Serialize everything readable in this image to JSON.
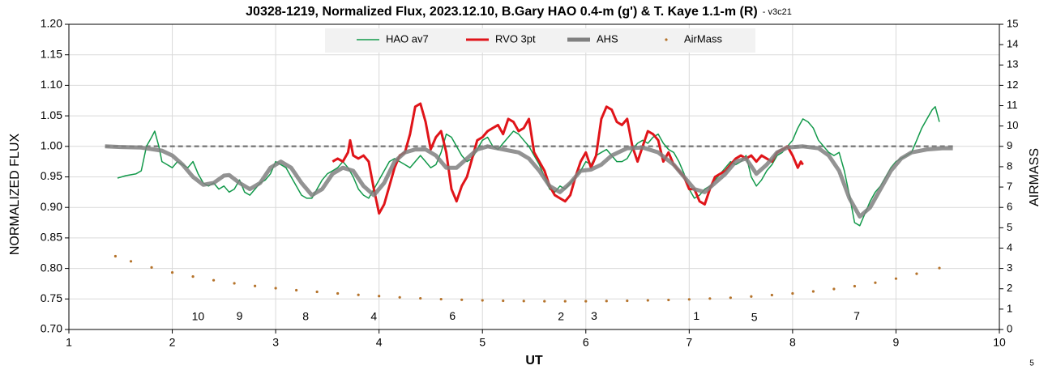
{
  "chart_data": {
    "type": "line",
    "title": "J0328-1219, Normalized Flux, 2023.12.10, B.Gary HAO 0.4-m (g') & T. Kaye 1.1-m (R)",
    "subtitle": "- v3c21",
    "x_label": "UT",
    "y_label": "NORMALIZED FLUX",
    "y2_label": "AIRMASS",
    "corner_note": "5",
    "xlim": [
      1,
      10
    ],
    "xticks": [
      1,
      2,
      3,
      4,
      5,
      6,
      7,
      8,
      9,
      10
    ],
    "ylim": [
      0.7,
      1.2
    ],
    "yticks": [
      {
        "value": 0.7,
        "label": "0.70"
      },
      {
        "value": 0.75,
        "label": "0.75"
      },
      {
        "value": 0.8,
        "label": "0.80"
      },
      {
        "value": 0.85,
        "label": "0.85"
      },
      {
        "value": 0.9,
        "label": "0.90"
      },
      {
        "value": 0.95,
        "label": "0.95"
      },
      {
        "value": 1.0,
        "label": "1.00"
      },
      {
        "value": 1.05,
        "label": "1.05"
      },
      {
        "value": 1.1,
        "label": "1.10"
      },
      {
        "value": 1.15,
        "label": "1.15"
      },
      {
        "value": 1.2,
        "label": "1.20"
      }
    ],
    "y2lim": [
      0,
      15
    ],
    "y2ticks": [
      0,
      1,
      2,
      3,
      4,
      5,
      6,
      7,
      8,
      9,
      10,
      11,
      12,
      13,
      14,
      15
    ],
    "grid": true,
    "legend": "top",
    "reference_line": {
      "y": 1.0,
      "x": [
        1.35,
        9.55
      ],
      "color": "#808080"
    },
    "series": [
      {
        "name": "HAO av7",
        "color": "#12994a",
        "width": 1.5,
        "x": [
          1.47,
          1.55,
          1.65,
          1.7,
          1.75,
          1.8,
          1.83,
          1.87,
          1.9,
          1.95,
          2.0,
          2.05,
          2.1,
          2.15,
          2.2,
          2.25,
          2.3,
          2.35,
          2.4,
          2.45,
          2.5,
          2.55,
          2.6,
          2.65,
          2.7,
          2.75,
          2.8,
          2.85,
          2.9,
          2.95,
          3.0,
          3.05,
          3.1,
          3.15,
          3.2,
          3.25,
          3.3,
          3.35,
          3.4,
          3.45,
          3.5,
          3.55,
          3.6,
          3.65,
          3.7,
          3.75,
          3.8,
          3.85,
          3.9,
          3.95,
          4.0,
          4.05,
          4.1,
          4.15,
          4.2,
          4.25,
          4.3,
          4.35,
          4.4,
          4.45,
          4.5,
          4.55,
          4.6,
          4.65,
          4.7,
          4.75,
          4.8,
          4.85,
          4.9,
          4.95,
          5.0,
          5.05,
          5.1,
          5.15,
          5.2,
          5.25,
          5.3,
          5.35,
          5.4,
          5.45,
          5.5,
          5.55,
          5.6,
          5.65,
          5.7,
          5.75,
          5.8,
          5.85,
          5.9,
          5.95,
          6.0,
          6.05,
          6.1,
          6.15,
          6.2,
          6.25,
          6.3,
          6.35,
          6.4,
          6.45,
          6.5,
          6.55,
          6.6,
          6.65,
          6.7,
          6.75,
          6.8,
          6.85,
          6.9,
          6.95,
          7.0,
          7.05,
          7.1,
          7.15,
          7.2,
          7.25,
          7.3,
          7.35,
          7.4,
          7.45,
          7.5,
          7.55,
          7.6,
          7.65,
          7.7,
          7.75,
          7.8,
          7.85,
          7.9,
          7.95,
          8.0,
          8.05,
          8.1,
          8.15,
          8.2,
          8.25,
          8.3,
          8.35,
          8.4,
          8.45,
          8.5,
          8.55,
          8.6,
          8.65,
          8.7,
          8.75,
          8.8,
          8.85,
          8.9,
          8.95,
          9.0,
          9.05,
          9.1,
          9.15,
          9.2,
          9.25,
          9.3,
          9.35,
          9.38,
          9.42
        ],
        "values": [
          0.948,
          0.952,
          0.955,
          0.96,
          1.0,
          1.015,
          1.025,
          1.0,
          0.975,
          0.97,
          0.965,
          0.975,
          0.97,
          0.965,
          0.975,
          0.955,
          0.94,
          0.935,
          0.94,
          0.93,
          0.935,
          0.925,
          0.93,
          0.945,
          0.925,
          0.92,
          0.93,
          0.94,
          0.945,
          0.955,
          0.975,
          0.97,
          0.965,
          0.95,
          0.935,
          0.92,
          0.915,
          0.915,
          0.93,
          0.945,
          0.955,
          0.96,
          0.965,
          0.975,
          0.965,
          0.95,
          0.93,
          0.92,
          0.915,
          0.93,
          0.945,
          0.96,
          0.975,
          0.98,
          0.975,
          0.97,
          0.965,
          0.975,
          0.985,
          0.975,
          0.965,
          0.97,
          0.99,
          1.02,
          1.015,
          1.0,
          0.985,
          0.975,
          0.98,
          0.995,
          1.01,
          1.015,
          1.0,
          0.995,
          1.005,
          1.015,
          1.025,
          1.02,
          1.01,
          1.0,
          0.985,
          0.97,
          0.95,
          0.93,
          0.925,
          0.935,
          0.93,
          0.94,
          0.95,
          0.96,
          0.975,
          0.97,
          0.985,
          0.99,
          0.995,
          0.985,
          0.975,
          0.975,
          0.98,
          0.995,
          1.005,
          1.01,
          1.005,
          1.015,
          1.02,
          1.005,
          0.995,
          0.99,
          0.975,
          0.955,
          0.93,
          0.915,
          0.92,
          0.93,
          0.935,
          0.945,
          0.955,
          0.965,
          0.975,
          0.97,
          0.975,
          0.985,
          0.95,
          0.935,
          0.945,
          0.96,
          0.97,
          0.985,
          0.99,
          1.0,
          1.01,
          1.03,
          1.045,
          1.04,
          1.03,
          1.01,
          1.0,
          0.99,
          0.985,
          0.99,
          0.96,
          0.92,
          0.875,
          0.87,
          0.89,
          0.91,
          0.925,
          0.935,
          0.95,
          0.965,
          0.975,
          0.98,
          0.985,
          0.99,
          1.01,
          1.03,
          1.045,
          1.06,
          1.065,
          1.04
        ]
      },
      {
        "name": "RVO 3pt",
        "color": "#e01419",
        "width": 3,
        "x": [
          3.55,
          3.6,
          3.65,
          3.7,
          3.72,
          3.75,
          3.8,
          3.85,
          3.9,
          3.95,
          4.0,
          4.05,
          4.1,
          4.15,
          4.2,
          4.25,
          4.3,
          4.35,
          4.4,
          4.45,
          4.5,
          4.55,
          4.6,
          4.65,
          4.7,
          4.75,
          4.8,
          4.85,
          4.9,
          4.95,
          5.0,
          5.05,
          5.1,
          5.15,
          5.2,
          5.25,
          5.3,
          5.35,
          5.4,
          5.45,
          5.5,
          5.55,
          5.6,
          5.65,
          5.7,
          5.75,
          5.8,
          5.85,
          5.9,
          5.95,
          6.0,
          6.05,
          6.1,
          6.15,
          6.2,
          6.25,
          6.3,
          6.35,
          6.4,
          6.45,
          6.5,
          6.55,
          6.6,
          6.65,
          6.7,
          6.75,
          6.8,
          6.85,
          6.9,
          6.95,
          7.0,
          7.05,
          7.1,
          7.15,
          7.2,
          7.25,
          7.3,
          7.35,
          7.4,
          7.45,
          7.5,
          7.55,
          7.6,
          7.65,
          7.7,
          7.75,
          7.8,
          7.85,
          7.9,
          7.95,
          8.0,
          8.05,
          8.08,
          8.1
        ],
        "values": [
          0.975,
          0.98,
          0.975,
          0.99,
          1.01,
          0.985,
          0.98,
          0.985,
          0.975,
          0.93,
          0.89,
          0.905,
          0.935,
          0.965,
          0.985,
          0.99,
          1.02,
          1.065,
          1.07,
          1.04,
          0.995,
          1.015,
          1.025,
          0.99,
          0.93,
          0.91,
          0.935,
          0.95,
          0.98,
          1.01,
          1.015,
          1.025,
          1.03,
          1.035,
          1.02,
          1.045,
          1.04,
          1.025,
          1.03,
          1.045,
          0.99,
          0.975,
          0.96,
          0.935,
          0.92,
          0.915,
          0.91,
          0.92,
          0.95,
          0.975,
          0.99,
          0.965,
          0.985,
          1.045,
          1.065,
          1.06,
          1.04,
          1.035,
          1.045,
          1.0,
          0.975,
          1.0,
          1.025,
          1.02,
          1.01,
          0.975,
          0.99,
          0.97,
          0.96,
          0.95,
          0.93,
          0.93,
          0.91,
          0.905,
          0.93,
          0.95,
          0.955,
          0.96,
          0.97,
          0.98,
          0.985,
          0.98,
          0.985,
          0.975,
          0.985,
          0.98,
          0.975,
          0.99,
          0.995,
          1.0,
          0.985,
          0.965,
          0.975,
          0.97
        ]
      },
      {
        "name": "AHS",
        "color": "#808080",
        "width": 5,
        "x": [
          1.35,
          1.5,
          1.7,
          1.9,
          2.0,
          2.1,
          2.2,
          2.3,
          2.4,
          2.5,
          2.55,
          2.65,
          2.75,
          2.85,
          2.95,
          3.05,
          3.15,
          3.25,
          3.35,
          3.45,
          3.55,
          3.65,
          3.75,
          3.85,
          3.95,
          4.05,
          4.15,
          4.25,
          4.35,
          4.45,
          4.55,
          4.65,
          4.75,
          4.85,
          4.95,
          5.05,
          5.2,
          5.35,
          5.45,
          5.55,
          5.65,
          5.75,
          5.85,
          5.95,
          6.05,
          6.15,
          6.25,
          6.4,
          6.55,
          6.7,
          6.85,
          6.95,
          7.05,
          7.15,
          7.25,
          7.35,
          7.45,
          7.55,
          7.65,
          7.75,
          7.85,
          7.95,
          8.1,
          8.25,
          8.35,
          8.45,
          8.55,
          8.65,
          8.75,
          8.85,
          8.95,
          9.05,
          9.15,
          9.3,
          9.45,
          9.55
        ],
        "values": [
          1.0,
          0.999,
          0.998,
          0.993,
          0.985,
          0.97,
          0.95,
          0.937,
          0.94,
          0.952,
          0.953,
          0.94,
          0.93,
          0.94,
          0.965,
          0.975,
          0.965,
          0.94,
          0.92,
          0.93,
          0.955,
          0.965,
          0.96,
          0.935,
          0.92,
          0.94,
          0.975,
          0.99,
          0.995,
          0.995,
          0.985,
          0.965,
          0.965,
          0.98,
          0.995,
          1.0,
          0.995,
          0.99,
          0.98,
          0.96,
          0.935,
          0.925,
          0.94,
          0.96,
          0.962,
          0.97,
          0.985,
          0.997,
          0.998,
          0.99,
          0.97,
          0.95,
          0.93,
          0.925,
          0.94,
          0.955,
          0.975,
          0.98,
          0.955,
          0.97,
          0.99,
          0.998,
          1.0,
          0.997,
          0.985,
          0.96,
          0.915,
          0.885,
          0.9,
          0.93,
          0.96,
          0.98,
          0.99,
          0.995,
          0.997,
          0.997
        ]
      },
      {
        "name": "AirMass",
        "color": "#b5732b",
        "axis": "y2",
        "dots": true,
        "x": [
          1.45,
          1.6,
          1.8,
          2.0,
          2.2,
          2.4,
          2.6,
          2.8,
          3.0,
          3.2,
          3.4,
          3.6,
          3.8,
          4.0,
          4.2,
          4.4,
          4.6,
          4.8,
          5.0,
          5.2,
          5.4,
          5.6,
          5.8,
          6.0,
          6.2,
          6.4,
          6.6,
          6.8,
          7.0,
          7.2,
          7.4,
          7.6,
          7.8,
          8.0,
          8.2,
          8.4,
          8.6,
          8.8,
          9.0,
          9.2,
          9.42
        ],
        "values": [
          3.6,
          3.35,
          3.05,
          2.8,
          2.6,
          2.42,
          2.27,
          2.14,
          2.03,
          1.93,
          1.85,
          1.77,
          1.7,
          1.64,
          1.58,
          1.53,
          1.49,
          1.46,
          1.43,
          1.41,
          1.4,
          1.39,
          1.39,
          1.39,
          1.4,
          1.41,
          1.43,
          1.45,
          1.48,
          1.52,
          1.56,
          1.62,
          1.69,
          1.77,
          1.87,
          1.99,
          2.13,
          2.3,
          2.5,
          2.74,
          3.02
        ]
      }
    ],
    "annotations": [
      {
        "text": "10",
        "x": 2.25,
        "y": 0.72
      },
      {
        "text": "9",
        "x": 2.65,
        "y": 0.721
      },
      {
        "text": "8",
        "x": 3.29,
        "y": 0.72
      },
      {
        "text": "4",
        "x": 3.95,
        "y": 0.72
      },
      {
        "text": "6",
        "x": 4.71,
        "y": 0.721
      },
      {
        "text": "2",
        "x": 5.76,
        "y": 0.72
      },
      {
        "text": "3",
        "x": 6.08,
        "y": 0.721
      },
      {
        "text": "1",
        "x": 7.07,
        "y": 0.721
      },
      {
        "text": "5",
        "x": 7.63,
        "y": 0.719
      },
      {
        "text": "7",
        "x": 8.62,
        "y": 0.721
      }
    ]
  }
}
